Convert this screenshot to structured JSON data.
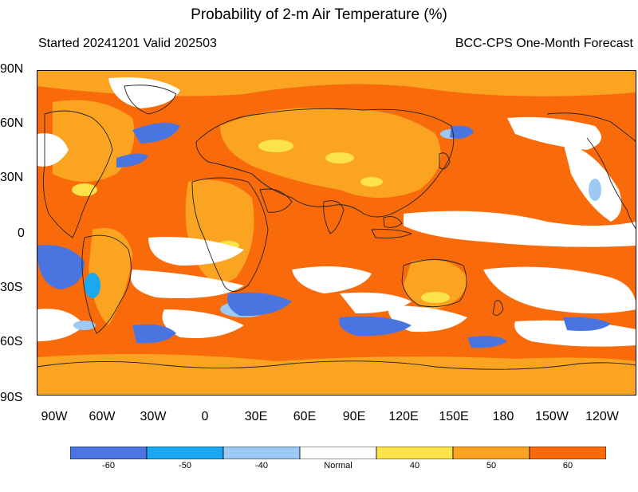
{
  "header": {
    "title": "Probability of 2-m Air Temperature (%)",
    "started_valid": "Started 20241201  Valid 202503",
    "source": "BCC-CPS One-Month Forecast"
  },
  "axes": {
    "lat_labels": [
      "90N",
      "60N",
      "30N",
      "0",
      "30S",
      "60S",
      "90S"
    ],
    "lon_labels": [
      "90W",
      "60W",
      "30W",
      "0",
      "30E",
      "60E",
      "90E",
      "120E",
      "150E",
      "180",
      "150W",
      "120W"
    ]
  },
  "legend": {
    "categories": [
      {
        "label": "-60",
        "color": "#4a74e0"
      },
      {
        "label": "-50",
        "color": "#1aa8f0"
      },
      {
        "label": "-40",
        "color": "#9ccaf5"
      },
      {
        "label": "Normal",
        "color": "#ffffff"
      },
      {
        "label": "40",
        "color": "#fde24a"
      },
      {
        "label": "50",
        "color": "#fba422"
      },
      {
        "label": "60",
        "color": "#f96b0a"
      }
    ]
  },
  "map": {
    "dominant_category": "60",
    "land_outline_color": "#222222"
  }
}
